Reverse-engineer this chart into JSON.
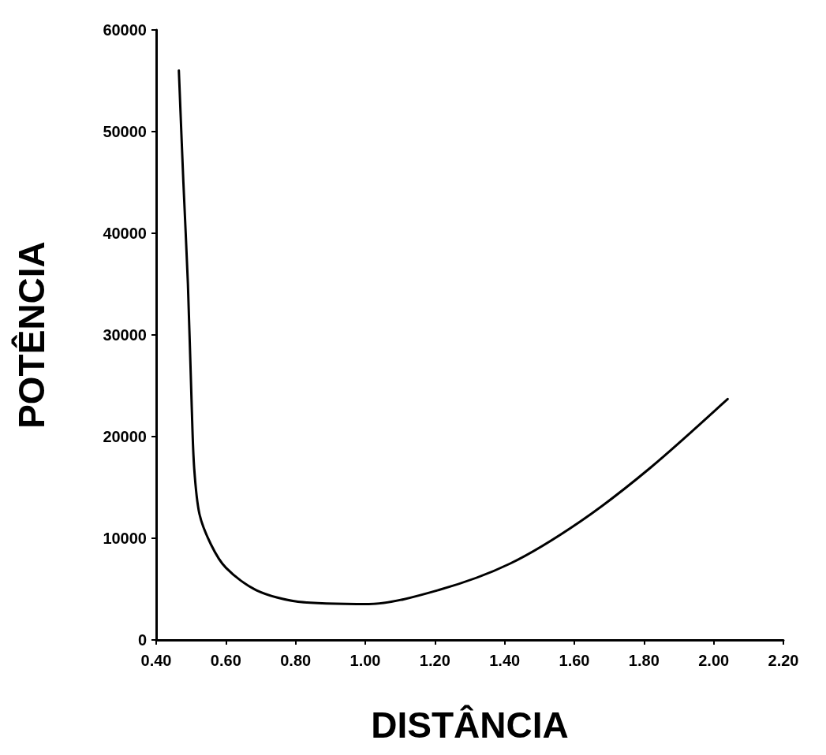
{
  "chart_data": {
    "type": "line",
    "xlabel": "DISTÂNCIA",
    "ylabel": "POTÊNCIA",
    "x": [
      0.465,
      0.478,
      0.491,
      0.502,
      0.509,
      0.524,
      0.557,
      0.6,
      0.687,
      0.807,
      1.01,
      1.21,
      1.415,
      1.617,
      1.817,
      2.04
    ],
    "series": [
      {
        "color": "#000000",
        "values": [
          56000,
          45000,
          35000,
          22900,
          16900,
          12400,
          9400,
          7100,
          4900,
          3760,
          3530,
          4900,
          7500,
          11650,
          16900,
          23700
        ]
      }
    ],
    "xlim": [
      0.4,
      2.2
    ],
    "xticks": [
      {
        "value": 0.4,
        "label": "0.40"
      },
      {
        "value": 0.6,
        "label": "0.60"
      },
      {
        "value": 0.8,
        "label": "0.80"
      },
      {
        "value": 1.0,
        "label": "1.00"
      },
      {
        "value": 1.2,
        "label": "1.20"
      },
      {
        "value": 1.4,
        "label": "1.40"
      },
      {
        "value": 1.6,
        "label": "1.60"
      },
      {
        "value": 1.8,
        "label": "1.80"
      },
      {
        "value": 2.0,
        "label": "2.00"
      },
      {
        "value": 2.2,
        "label": "2.20"
      }
    ],
    "ylim": [
      0,
      60000
    ],
    "yticks": [
      0,
      10000,
      20000,
      30000,
      40000,
      50000,
      60000
    ],
    "grid": false,
    "marker": "none",
    "line_style": "solid"
  }
}
